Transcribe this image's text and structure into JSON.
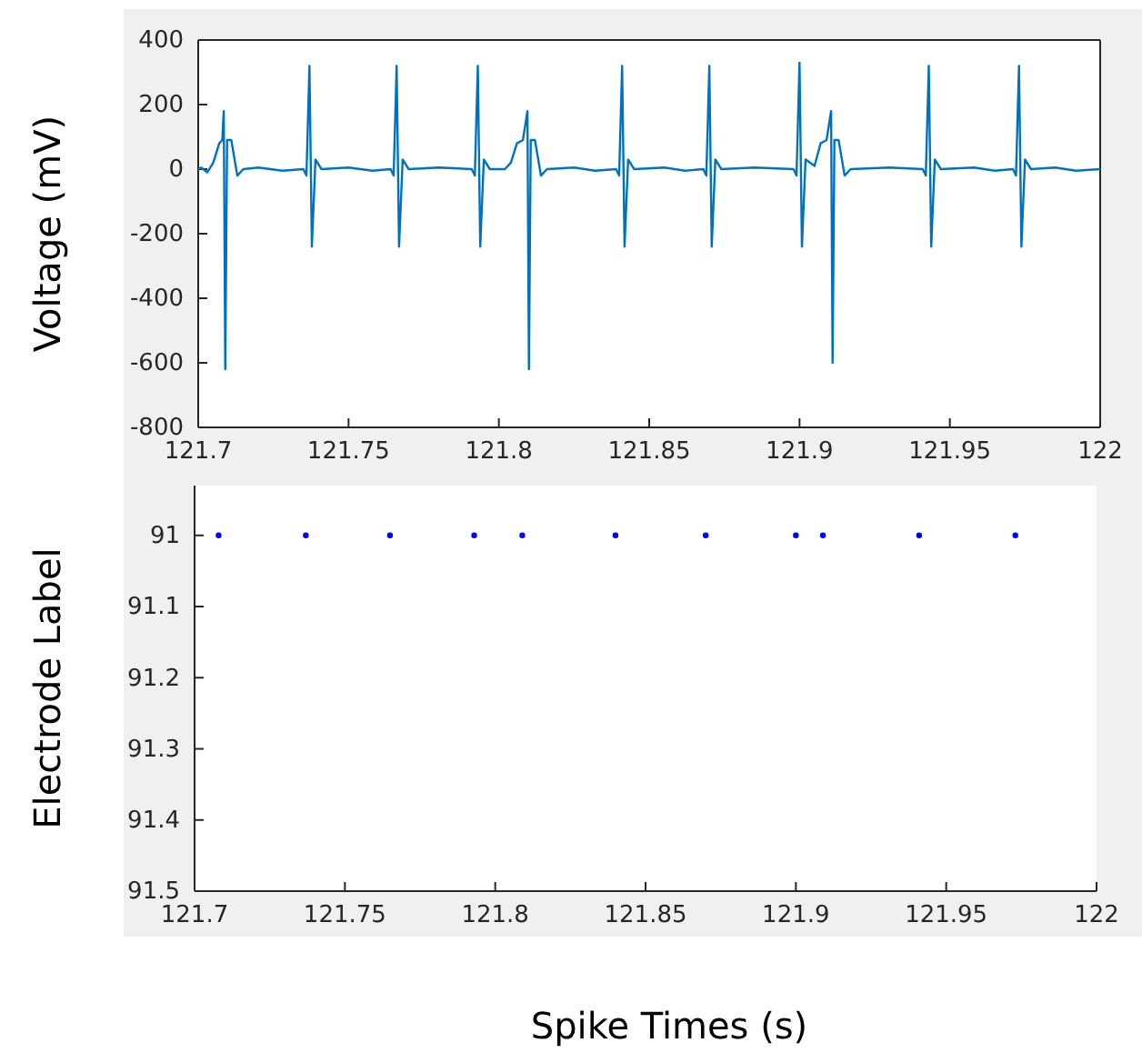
{
  "chart_data": [
    {
      "type": "line",
      "ylabel": "Voltage (mV)",
      "xlim": [
        121.7,
        122
      ],
      "xticks": [
        121.7,
        121.75,
        121.8,
        121.85,
        121.9,
        121.95,
        122
      ],
      "ylim": [
        -800,
        400
      ],
      "yticks": [
        -800,
        -600,
        -400,
        -200,
        0,
        200,
        400
      ],
      "series": [
        {
          "color": "#0072bd",
          "x": [
            121.7,
            121.701,
            121.703,
            121.705,
            121.707,
            121.708,
            121.7085,
            121.709,
            121.7096,
            121.711,
            121.713,
            121.715,
            121.72,
            121.728,
            121.735,
            121.736,
            121.737,
            121.7378,
            121.739,
            121.741,
            121.75,
            121.758,
            121.764,
            121.765,
            121.766,
            121.7668,
            121.768,
            121.77,
            121.78,
            121.791,
            121.792,
            121.793,
            121.7938,
            121.795,
            121.797,
            121.802,
            121.804,
            121.806,
            121.808,
            121.8095,
            121.81,
            121.8106,
            121.812,
            121.814,
            121.816,
            121.825,
            121.832,
            121.839,
            121.84,
            121.841,
            121.8418,
            121.843,
            121.845,
            121.855,
            121.862,
            121.868,
            121.869,
            121.87,
            121.8708,
            121.872,
            121.874,
            121.885,
            121.898,
            121.899,
            121.9,
            121.9008,
            121.902,
            121.905,
            121.907,
            121.909,
            121.9105,
            121.911,
            121.9116,
            121.913,
            121.915,
            121.917,
            121.93,
            121.941,
            121.942,
            121.943,
            121.9438,
            121.945,
            121.947,
            121.958,
            121.965,
            121.971,
            121.972,
            121.973,
            121.9738,
            121.975,
            121.977,
            121.985,
            121.992,
            122
          ],
          "values": [
            0,
            5,
            -10,
            20,
            80,
            90,
            180,
            -620,
            90,
            90,
            -20,
            0,
            5,
            -5,
            0,
            -20,
            320,
            -240,
            30,
            0,
            5,
            -5,
            0,
            -20,
            320,
            -240,
            30,
            0,
            5,
            0,
            -20,
            320,
            -240,
            30,
            0,
            0,
            20,
            80,
            90,
            180,
            -620,
            90,
            90,
            -20,
            0,
            5,
            -5,
            0,
            -20,
            320,
            -240,
            30,
            0,
            5,
            -5,
            0,
            -20,
            320,
            -240,
            30,
            0,
            5,
            0,
            -20,
            330,
            -240,
            30,
            10,
            80,
            90,
            180,
            -600,
            90,
            90,
            -20,
            0,
            5,
            0,
            -20,
            320,
            -240,
            30,
            0,
            5,
            -5,
            0,
            -20,
            320,
            -240,
            30,
            0,
            5,
            -5,
            0
          ]
        }
      ]
    },
    {
      "type": "scatter",
      "xlabel": "Spike Times (s)",
      "ylabel": "Electrode Label",
      "marker": "circle",
      "xlim": [
        121.7,
        122
      ],
      "xticks": [
        121.7,
        121.75,
        121.8,
        121.85,
        121.9,
        121.95,
        122
      ],
      "ylim": [
        91.5,
        90.93
      ],
      "yticks": [
        91,
        91.1,
        91.2,
        91.3,
        91.4,
        91.5
      ],
      "x": [
        121.708,
        121.737,
        121.765,
        121.793,
        121.809,
        121.84,
        121.87,
        121.9,
        121.909,
        121.941,
        121.973
      ],
      "series": [
        {
          "color": "#0000ff",
          "values": [
            91,
            91,
            91,
            91,
            91,
            91,
            91,
            91,
            91,
            91,
            91
          ]
        }
      ]
    }
  ]
}
